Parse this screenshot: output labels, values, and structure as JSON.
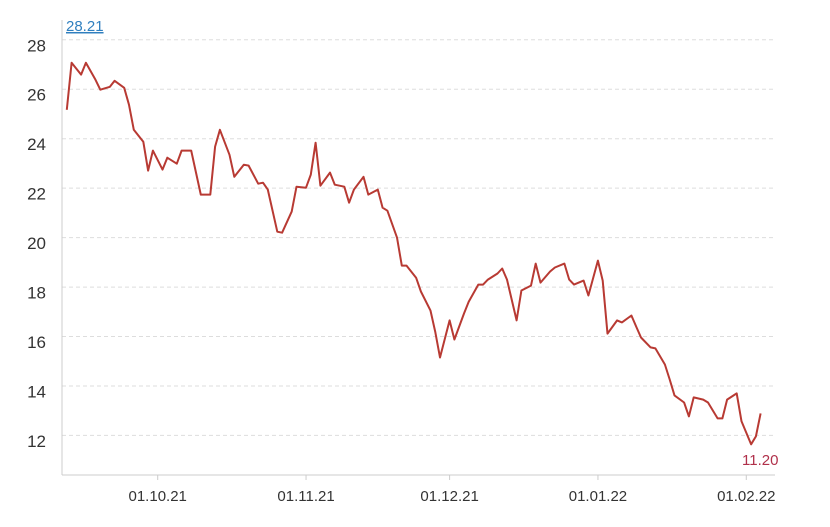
{
  "chart_data": {
    "type": "line",
    "x": [
      "12.09.21",
      "13.09.21",
      "15.09.21",
      "16.09.21",
      "18.09.21",
      "19.09.21",
      "21.09.21",
      "22.09.21",
      "24.09.21",
      "25.09.21",
      "26.09.21",
      "28.09.21",
      "29.09.21",
      "30.09.21",
      "02.10.21",
      "03.10.21",
      "05.10.21",
      "06.10.21",
      "08.10.21",
      "09.10.21",
      "10.10.21",
      "12.10.21",
      "13.10.21",
      "14.10.21",
      "16.10.21",
      "17.10.21",
      "19.10.21",
      "20.10.21",
      "22.10.21",
      "23.10.21",
      "24.10.21",
      "26.10.21",
      "27.10.21",
      "29.10.21",
      "30.10.21",
      "01.11.21",
      "02.11.21",
      "03.11.21",
      "04.11.21",
      "06.11.21",
      "07.11.21",
      "09.11.21",
      "10.11.21",
      "11.11.21",
      "13.11.21",
      "14.11.21",
      "16.11.21",
      "17.11.21",
      "18.11.21",
      "20.11.21",
      "21.11.21",
      "22.11.21",
      "24.11.21",
      "25.11.21",
      "27.11.21",
      "28.11.21",
      "29.11.21",
      "01.12.21",
      "02.12.21",
      "04.12.21",
      "05.12.21",
      "07.12.21",
      "08.12.21",
      "09.12.21",
      "11.12.21",
      "12.12.21",
      "13.12.21",
      "15.12.21",
      "16.12.21",
      "18.12.21",
      "19.12.21",
      "20.12.21",
      "22.12.21",
      "23.12.21",
      "25.12.21",
      "26.12.21",
      "27.12.21",
      "29.12.21",
      "30.12.21",
      "01.01.22",
      "02.01.22",
      "03.01.22",
      "05.01.22",
      "06.01.22",
      "08.01.22",
      "09.01.22",
      "10.01.22",
      "12.01.22",
      "13.01.22",
      "15.01.22",
      "16.01.22",
      "17.01.22",
      "19.01.22",
      "20.01.22",
      "21.01.22",
      "23.01.22",
      "24.01.22",
      "26.01.22",
      "27.01.22",
      "28.01.22",
      "30.01.22",
      "31.01.22",
      "02.02.22",
      "03.02.22",
      "04.02.22"
    ],
    "series": [
      {
        "color": "#b83a33",
        "values": [
          25.17,
          27.07,
          26.59,
          27.07,
          26.38,
          25.98,
          26.1,
          26.34,
          26.06,
          25.37,
          24.36,
          23.88,
          22.71,
          23.52,
          22.75,
          23.23,
          22.99,
          23.52,
          23.52,
          22.63,
          21.74,
          21.74,
          23.68,
          24.36,
          23.35,
          22.46,
          22.95,
          22.91,
          22.18,
          22.22,
          21.94,
          20.24,
          20.2,
          21.05,
          22.06,
          22.02,
          22.55,
          23.84,
          22.1,
          22.63,
          22.14,
          22.06,
          21.41,
          21.94,
          22.46,
          21.74,
          21.94,
          21.21,
          21.09,
          20.0,
          18.87,
          18.87,
          18.38,
          17.82,
          17.05,
          16.2,
          15.15,
          16.65,
          15.88,
          16.93,
          17.41,
          18.1,
          18.1,
          18.3,
          18.55,
          18.75,
          18.3,
          16.65,
          17.86,
          18.06,
          18.95,
          18.18,
          18.63,
          18.79,
          18.95,
          18.3,
          18.1,
          18.26,
          17.66,
          19.07,
          18.26,
          16.12,
          16.65,
          16.57,
          16.85,
          16.4,
          15.96,
          15.56,
          15.52,
          14.87,
          14.26,
          13.62,
          13.33,
          12.77,
          13.54,
          13.45,
          13.33,
          12.69,
          12.69,
          13.45,
          13.7,
          12.57,
          11.64,
          11.96,
          12.89
        ]
      }
    ],
    "xlim": [
      "11.09.21",
      "07.02.22"
    ],
    "xticks": [
      "01.10.21",
      "01.11.21",
      "01.12.21",
      "01.01.22",
      "01.02.22"
    ],
    "ylim": [
      10.4,
      28.8
    ],
    "yticks": [
      12,
      14,
      16,
      18,
      20,
      22,
      24,
      26,
      28
    ],
    "grid": true,
    "annotations": [
      {
        "text": "28.21",
        "color": "#2f7fbf"
      },
      {
        "text": "11.20",
        "color": "#b0304a"
      }
    ]
  }
}
